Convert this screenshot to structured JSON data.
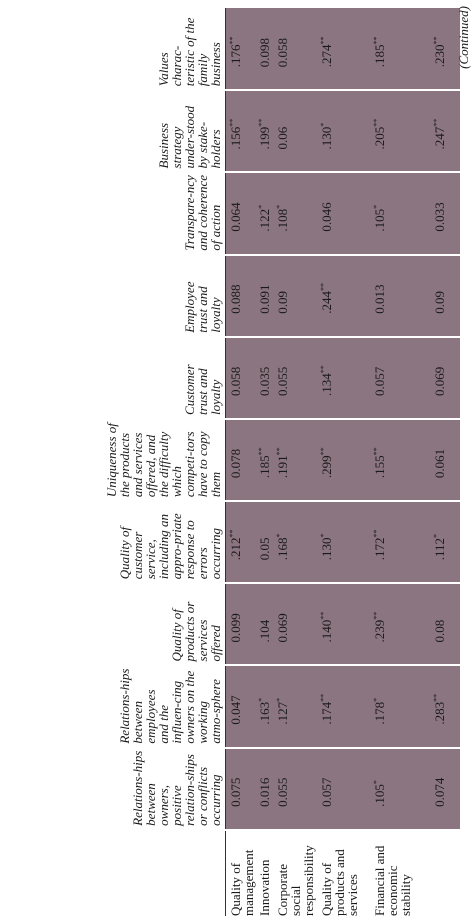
{
  "table": {
    "columns": [
      "Relations-hips between owners, positive relation-ships or conflicts occurring",
      "Relations-hips between employees and the influen-cing owners on the working atmo-sphere",
      "Quality of products or services offered",
      "Quality of customer service, including an appro-priate response to errors occurring",
      "Uniqueness of the products and services offered, and the difficulty which competi-tors have to copy them",
      "Customer trust and loyalty",
      "Employee trust and loyalty",
      "Transpare-ncy and coherence of action",
      "Business strategy under-stood by stake-holders",
      "Values charac-teristic of the family business"
    ],
    "rows": [
      {
        "label": "Quality of management",
        "values": [
          "0.075",
          "0.047",
          "0.099",
          ".212**",
          "0.078",
          "0.058",
          "0.088",
          "0.064",
          ".156**",
          ".176**"
        ]
      },
      {
        "label": "Innovation",
        "values": [
          "0.016",
          ".163*",
          ".104",
          "0.05",
          ".185**",
          "0.035",
          "0.091",
          ".122*",
          ".199**",
          "0.098"
        ]
      },
      {
        "label": "Corporate social responsibility",
        "values": [
          "0.055",
          ".127*",
          "0.069",
          ".168*",
          ".191**",
          "0.055",
          "0.09",
          ".108*",
          "0.06",
          "0.058"
        ]
      },
      {
        "label": "Quality of products and services",
        "values": [
          "0.057",
          ".174**",
          ".140**",
          ".130*",
          ".299**",
          ".134**",
          ".244**",
          "0.046",
          ".130*",
          ".274**"
        ]
      },
      {
        "label": "Financial and economic stability",
        "values": [
          ".105*",
          ".178*",
          ".239**",
          ".172**",
          ".155**",
          "0.057",
          "0.013",
          ".105*",
          ".205**",
          ".185**"
        ]
      },
      {
        "label": null,
        "values": [
          "0.074",
          ".283**",
          "0.08",
          ".112*",
          "0.061",
          "0.069",
          "0.09",
          "0.033",
          ".247**",
          ".230**"
        ]
      }
    ]
  },
  "footer": "(Continued)"
}
